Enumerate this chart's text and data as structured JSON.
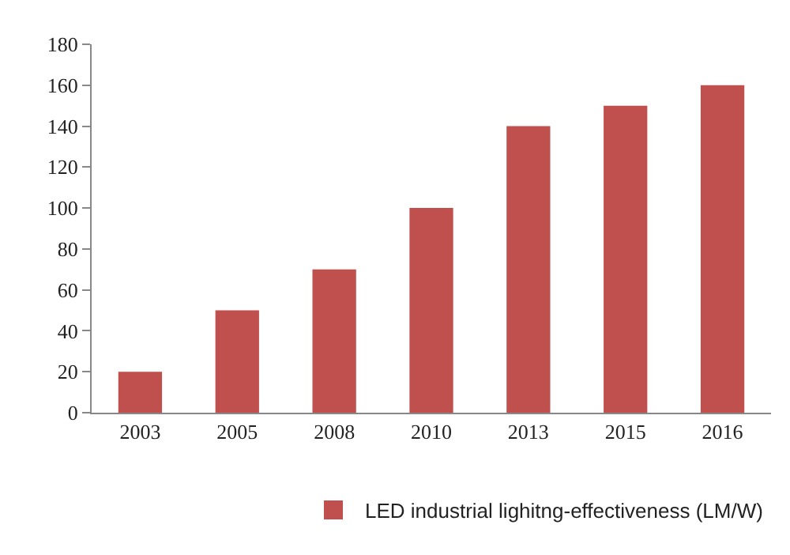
{
  "chart_data": {
    "type": "bar",
    "categories": [
      "2003",
      "2005",
      "2008",
      "2010",
      "2013",
      "2015",
      "2016"
    ],
    "series": [
      {
        "name": "LED industrial lighitng-effectiveness (LM/W)",
        "color": "#c0504d",
        "values": [
          20,
          50,
          70,
          100,
          140,
          150,
          160
        ]
      }
    ],
    "ylim": [
      0,
      180
    ],
    "yticks": [
      0,
      20,
      40,
      60,
      80,
      100,
      120,
      140,
      160,
      180
    ],
    "grid": false,
    "legend": "bottom right"
  }
}
